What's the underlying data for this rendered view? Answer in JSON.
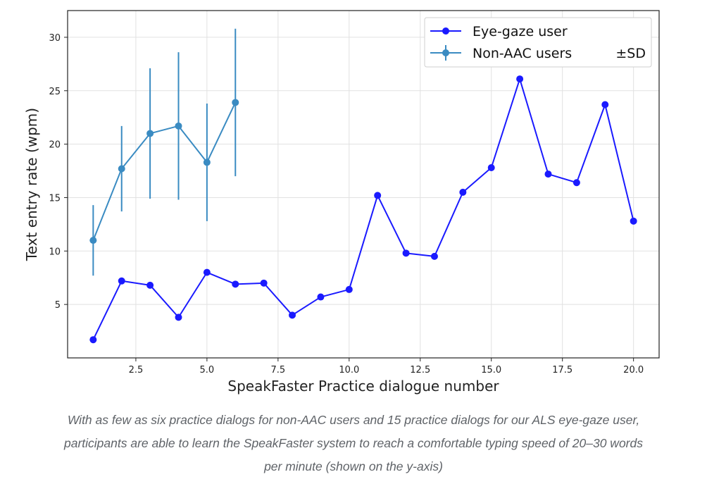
{
  "chart_data": {
    "type": "line",
    "xlabel": "SpeakFaster Practice dialogue number",
    "ylabel": "Text entry rate (wpm)",
    "xlim": [
      0.1,
      20.9
    ],
    "ylim": [
      0.0,
      32.5
    ],
    "xticks": [
      2.5,
      5.0,
      7.5,
      10.0,
      12.5,
      15.0,
      17.5,
      20.0
    ],
    "xtick_labels": [
      "2.5",
      "5.0",
      "7.5",
      "10.0",
      "12.5",
      "15.0",
      "17.5",
      "20.0"
    ],
    "yticks": [
      5,
      10,
      15,
      20,
      25,
      30
    ],
    "ytick_labels": [
      "5",
      "10",
      "15",
      "20",
      "25",
      "30"
    ],
    "grid": true,
    "legend_position": "top-right",
    "legend_note": "±SD",
    "series": [
      {
        "name": "Eye-gaze user",
        "color": "#1a1aff",
        "x": [
          1,
          2,
          3,
          4,
          5,
          6,
          7,
          8,
          9,
          10,
          11,
          12,
          13,
          14,
          15,
          16,
          17,
          18,
          19,
          20
        ],
        "y": [
          1.7,
          7.2,
          6.8,
          3.8,
          8.0,
          6.9,
          7.0,
          4.0,
          5.7,
          6.4,
          15.2,
          9.8,
          9.5,
          15.5,
          17.8,
          26.1,
          17.2,
          16.4,
          23.7,
          12.8
        ]
      },
      {
        "name": "Non-AAC users",
        "color": "#3a8bc2",
        "x": [
          1,
          2,
          3,
          4,
          5,
          6
        ],
        "y": [
          11.0,
          17.7,
          21.0,
          21.7,
          18.3,
          23.9
        ],
        "sd": [
          3.3,
          4.0,
          6.1,
          6.9,
          5.5,
          6.9
        ]
      }
    ]
  },
  "caption": {
    "lines": [
      "With as few as six practice dialogs for non-AAC users and 15 practice dialogs for our ALS eye-gaze user,",
      "participants are able to learn the SpeakFaster system to reach a comfortable typing speed of 20–30 words",
      "per minute (shown on the y-axis)"
    ]
  }
}
